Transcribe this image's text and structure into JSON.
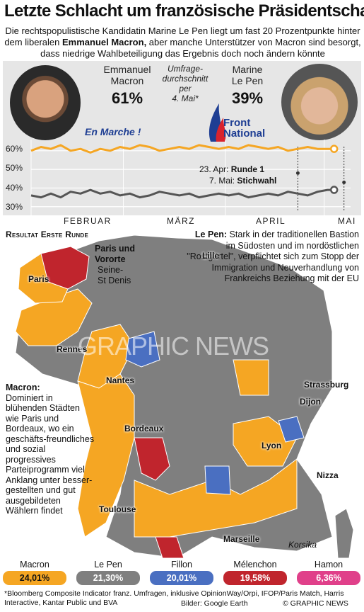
{
  "title": "Letzte Schlacht um französische Präsidentschaft",
  "subtitle": {
    "part1": "Die rechtspopulistische Kandidatin Marine Le Pen liegt um fast 20 Prozentpunkte hinter dem liberalen ",
    "bold": "Emmanuel Macron,",
    "part2": " aber manche Unterstützer von Macron sind besorgt, dass niedrige Wahlbeteiligung das Ergebnis doch noch ändern könnte"
  },
  "macron": {
    "first": "Emmanuel",
    "last": "Macron",
    "pct": "61%",
    "party": "En Marche !"
  },
  "lepen": {
    "first": "Marine",
    "last": "Le Pen",
    "pct": "39%",
    "party_line1": "Front",
    "party_line2": "National"
  },
  "poll_label": {
    "l1": "Umfrage-",
    "l2": "durchschnitt",
    "l3": "per",
    "l4": "4. Mai*"
  },
  "colors": {
    "macron": "#f5a623",
    "lepen": "#7f7f7f",
    "fillon": "#4a6fc1",
    "melenchon": "#c0252d",
    "hamon": "#e0408a",
    "panel": "#e6e6e6"
  },
  "rounds": {
    "r1_date": "23. Apr:",
    "r1_name": "Runde 1",
    "r2_date": "7. Mai:",
    "r2_name": "Stichwahl"
  },
  "chart_data": {
    "type": "line",
    "title": "",
    "xlabel": "",
    "ylabel": "",
    "ylim": [
      28,
      66
    ],
    "y_ticks": [
      "60%",
      "50%",
      "40%",
      "30%"
    ],
    "y_tick_values": [
      60,
      50,
      40,
      30
    ],
    "x_tick_labels": [
      "FEBRUAR",
      "MÄRZ",
      "APRIL",
      "MAI"
    ],
    "x_start": "2017-02-01",
    "x_end": "2017-05-09",
    "x_ticks": [
      "2017-02-01",
      "2017-03-01",
      "2017-04-01",
      "2017-05-01"
    ],
    "markers": [
      "2017-04-23",
      "2017-05-07"
    ],
    "series": [
      {
        "name": "",
        "color": "#f5a623",
        "x": [
          "2017-02-01",
          "2017-02-04",
          "2017-02-07",
          "2017-02-10",
          "2017-02-13",
          "2017-02-16",
          "2017-02-19",
          "2017-02-22",
          "2017-02-25",
          "2017-02-28",
          "2017-03-03",
          "2017-03-06",
          "2017-03-09",
          "2017-03-12",
          "2017-03-15",
          "2017-03-18",
          "2017-03-21",
          "2017-03-24",
          "2017-03-27",
          "2017-03-30",
          "2017-04-02",
          "2017-04-05",
          "2017-04-08",
          "2017-04-11",
          "2017-04-14",
          "2017-04-17",
          "2017-04-20",
          "2017-04-23",
          "2017-04-26",
          "2017-04-29",
          "2017-05-02",
          "2017-05-04"
        ],
        "values": [
          60,
          62,
          61,
          63,
          60,
          61,
          59,
          61,
          60,
          62,
          61,
          63,
          62,
          60,
          61,
          62,
          61,
          63,
          62,
          61,
          62,
          61,
          63,
          62,
          61,
          62,
          60,
          61,
          62,
          61,
          61,
          61
        ]
      },
      {
        "name": "",
        "color": "#555555",
        "x": [
          "2017-02-01",
          "2017-02-04",
          "2017-02-07",
          "2017-02-10",
          "2017-02-13",
          "2017-02-16",
          "2017-02-19",
          "2017-02-22",
          "2017-02-25",
          "2017-02-28",
          "2017-03-03",
          "2017-03-06",
          "2017-03-09",
          "2017-03-12",
          "2017-03-15",
          "2017-03-18",
          "2017-03-21",
          "2017-03-24",
          "2017-03-27",
          "2017-03-30",
          "2017-04-02",
          "2017-04-05",
          "2017-04-08",
          "2017-04-11",
          "2017-04-14",
          "2017-04-17",
          "2017-04-20",
          "2017-04-23",
          "2017-04-26",
          "2017-04-29",
          "2017-05-02",
          "2017-05-04"
        ],
        "values": [
          36,
          35,
          37,
          35,
          38,
          37,
          39,
          37,
          38,
          36,
          37,
          35,
          36,
          38,
          37,
          36,
          37,
          35,
          36,
          37,
          36,
          37,
          35,
          36,
          37,
          36,
          38,
          37,
          36,
          38,
          39,
          39
        ]
      }
    ]
  },
  "map": {
    "title": "Resultat Erste Runde",
    "paris_inset": {
      "l1": "Paris und",
      "l2": "Vororte",
      "l3": "Seine-",
      "l4": "St Denis"
    },
    "lepen_note": {
      "name": "Le Pen:",
      "text": " Stark in der traditionellen Bastion im Südosten und im nordöstlichen \"Rostgürtel\", verpflichtet sich zum Stopp der Immigration und Neuverhandlung von Frankreichs Beziehung mit der EU"
    },
    "macron_note": {
      "name": "Macron:",
      "text": "Dominiert in blühenden Städten wie Paris und Bordeaux, wo ein geschäfts-freundliches und sozial progressives Parteiprogramm viel Anklang unter besser-gestellten und gut ausgebildeten Wählern findet"
    },
    "cities": {
      "paris": "Paris",
      "lille": "Lille",
      "rennes": "Rennes",
      "nantes": "Nantes",
      "strassburg": "Strassburg",
      "dijon": "Dijon",
      "lyon": "Lyon",
      "bordeaux": "Bordeaux",
      "toulouse": "Toulouse",
      "marseille": "Marseille",
      "nizza": "Nizza",
      "korsika": "Korsika"
    },
    "watermark": "GRAPHIC NEWS"
  },
  "legend": [
    {
      "name": "Macron",
      "value": "24,01%",
      "color": "#f5a623",
      "text_color": "#111"
    },
    {
      "name": "Le Pen",
      "value": "21,30%",
      "color": "#7f7f7f",
      "text_color": "#fff"
    },
    {
      "name": "Fillon",
      "value": "20,01%",
      "color": "#4a6fc1",
      "text_color": "#fff"
    },
    {
      "name": "Mélenchon",
      "value": "19,58%",
      "color": "#c0252d",
      "text_color": "#fff"
    },
    {
      "name": "Hamon",
      "value": "6,36%",
      "color": "#e0408a",
      "text_color": "#fff"
    }
  ],
  "footnote": "*Bloomberg Composite Indicator franz. Umfragen, inklusive OpinionWay/Orpi, IFOP/Paris Match, Harris Interactive, Kantar Public und BVA",
  "credit_images": "Bilder: Google Earth",
  "credit": "© GRAPHIC NEWS"
}
